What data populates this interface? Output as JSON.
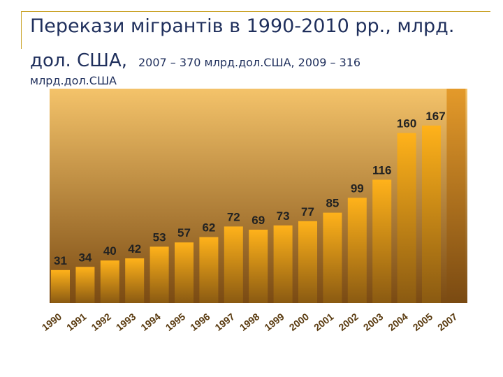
{
  "title": {
    "line1": "Перекази мігрантів в 1990-2010 рр., млрд.",
    "line2_main": "дол. США,",
    "line2_note": "2007 – 370 млрд.дол.США, 2009 – 316",
    "line3_note": "млрд.дол.США"
  },
  "colors": {
    "bar_top": "#ffb21a",
    "bar_bottom": "#8a5a12",
    "background_top": "#f4c36a",
    "background_bottom": "#7a4a12"
  },
  "chart_data": {
    "type": "bar",
    "categories": [
      "1990",
      "1991",
      "1992",
      "1993",
      "1994",
      "1995",
      "1996",
      "1997",
      "1998",
      "1999",
      "2000",
      "2001",
      "2002",
      "2003",
      "2004",
      "2005",
      "2007"
    ],
    "values": [
      31,
      34,
      40,
      42,
      53,
      57,
      62,
      72,
      69,
      73,
      77,
      85,
      99,
      116,
      160,
      167,
      null
    ],
    "data_labels": [
      "31",
      "34",
      "40",
      "42",
      "53",
      "57",
      "62",
      "72",
      "69",
      "73",
      "77",
      "85",
      "99",
      "116",
      "160",
      "167",
      ""
    ],
    "grid": false,
    "legend": "none"
  }
}
